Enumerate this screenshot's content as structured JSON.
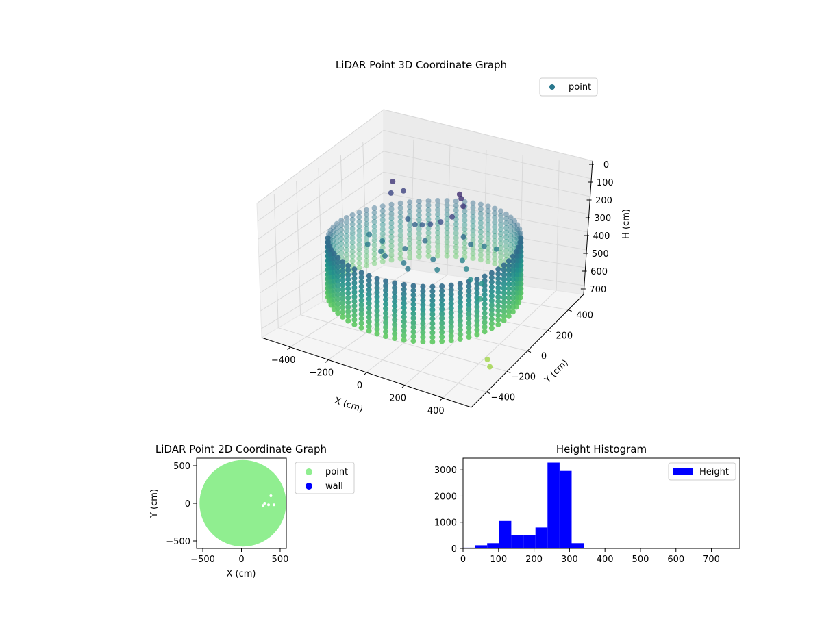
{
  "chart_data": [
    {
      "type": "scatter",
      "title": "LiDAR Point 3D Coordinate Graph",
      "xlabel": "X (cm)",
      "ylabel": "Y (cm)",
      "zlabel": "H (cm)",
      "xlim": [
        -550,
        550
      ],
      "ylim": [
        -550,
        550
      ],
      "zlim": [
        750,
        0
      ],
      "x_ticks": [
        "−400",
        "−200",
        "0",
        "200",
        "400"
      ],
      "y_ticks": [
        "−400",
        "−200",
        "0",
        "200",
        "400"
      ],
      "z_ticks": [
        "0",
        "100",
        "200",
        "300",
        "400",
        "500",
        "600",
        "700"
      ],
      "legend": {
        "placement": "top-right",
        "entries": [
          {
            "label": "point",
            "color": "#2a788e"
          }
        ]
      },
      "colormap": "viridis",
      "grid": true,
      "wall_radius": 450,
      "wall_height_range": [
        270,
        580
      ],
      "points": [
        {
          "x": -320,
          "y": 250,
          "h": 120
        },
        {
          "x": -300,
          "y": 200,
          "h": 160
        },
        {
          "x": -250,
          "y": 230,
          "h": 150
        },
        {
          "x": -150,
          "y": 100,
          "h": 230
        },
        {
          "x": -100,
          "y": 80,
          "h": 240
        },
        {
          "x": -50,
          "y": 60,
          "h": 220
        },
        {
          "x": 0,
          "y": 50,
          "h": 200
        },
        {
          "x": 50,
          "y": 60,
          "h": 180
        },
        {
          "x": 100,
          "y": 80,
          "h": 150
        },
        {
          "x": 120,
          "y": 150,
          "h": 120
        },
        {
          "x": 80,
          "y": 200,
          "h": 110
        },
        {
          "x": 60,
          "y": 220,
          "h": 100
        },
        {
          "x": 150,
          "y": 100,
          "h": 260
        },
        {
          "x": 200,
          "y": 80,
          "h": 280
        },
        {
          "x": 250,
          "y": 120,
          "h": 300
        },
        {
          "x": 300,
          "y": 150,
          "h": 320
        },
        {
          "x": 200,
          "y": 0,
          "h": 330
        },
        {
          "x": 250,
          "y": -50,
          "h": 340
        },
        {
          "x": 300,
          "y": -100,
          "h": 360
        },
        {
          "x": 350,
          "y": -80,
          "h": 380
        },
        {
          "x": 380,
          "y": -150,
          "h": 420
        },
        {
          "x": 100,
          "y": -100,
          "h": 300
        },
        {
          "x": 150,
          "y": -150,
          "h": 320
        },
        {
          "x": -200,
          "y": -50,
          "h": 300
        },
        {
          "x": -250,
          "y": -100,
          "h": 310
        },
        {
          "x": -150,
          "y": -150,
          "h": 300
        },
        {
          "x": -100,
          "y": -200,
          "h": 290
        },
        {
          "x": 0,
          "y": -200,
          "h": 300
        },
        {
          "x": 50,
          "y": -250,
          "h": 295
        },
        {
          "x": -300,
          "y": 0,
          "h": 310
        },
        {
          "x": -50,
          "y": -100,
          "h": 280
        },
        {
          "x": 0,
          "y": 0,
          "h": 270
        },
        {
          "x": 500,
          "y": -300,
          "h": 640
        },
        {
          "x": 540,
          "y": -350,
          "h": 640
        }
      ]
    },
    {
      "type": "scatter",
      "title": "LiDAR Point 2D Coordinate Graph",
      "xlabel": "X (cm)",
      "ylabel": "Y (cm)",
      "xlim": [
        -580,
        580
      ],
      "ylim": [
        -600,
        600
      ],
      "x_ticks": [
        -500,
        0,
        500
      ],
      "y_ticks": [
        -500,
        0,
        500
      ],
      "legend": {
        "placement": "outside-right",
        "entries": [
          {
            "label": "point",
            "color": "#90ee90"
          },
          {
            "label": "wall",
            "color": "#0000ff"
          }
        ]
      },
      "point_cloud_radius": 560,
      "grid": false
    },
    {
      "type": "bar",
      "title": "Height Histogram",
      "xlim": [
        0,
        780
      ],
      "ylim": [
        0,
        3450
      ],
      "x_ticks": [
        0,
        100,
        200,
        300,
        400,
        500,
        600,
        700
      ],
      "y_ticks": [
        0,
        1000,
        2000,
        3000
      ],
      "bin_edges": [
        0,
        34,
        68,
        102,
        136,
        170,
        204,
        238,
        272,
        306,
        340,
        374,
        408,
        442,
        476,
        510,
        544,
        578,
        612,
        646,
        680,
        714,
        748
      ],
      "values": [
        30,
        120,
        200,
        1050,
        500,
        500,
        800,
        3280,
        2960,
        200,
        5,
        5,
        5,
        5,
        5,
        5,
        5,
        5,
        5,
        5,
        5,
        5
      ],
      "color": "#0000ff",
      "legend": {
        "placement": "top-right",
        "entries": [
          {
            "label": "Height",
            "color": "#0000ff"
          }
        ]
      },
      "grid": false
    }
  ]
}
